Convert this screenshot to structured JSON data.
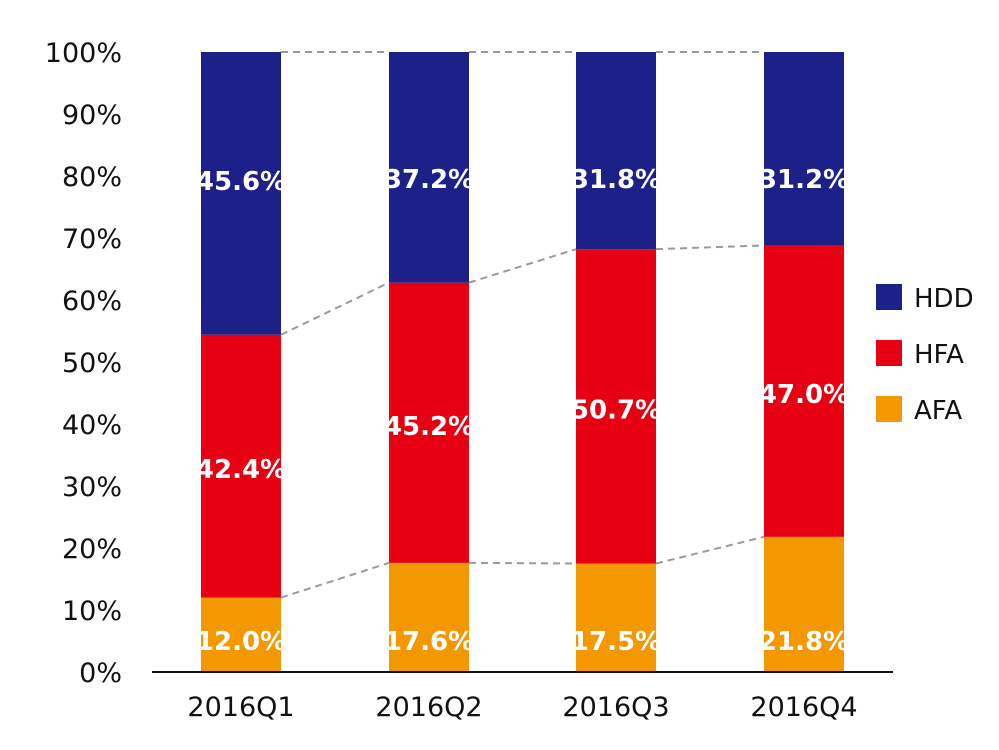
{
  "chart_data": {
    "type": "bar",
    "stacked": true,
    "categories": [
      "2016Q1",
      "2016Q2",
      "2016Q3",
      "2016Q4"
    ],
    "series": [
      {
        "name": "AFA",
        "color": "#f39800",
        "values": [
          12.0,
          17.6,
          17.5,
          21.8
        ],
        "labels": [
          "12.0%",
          "17.6%",
          "17.5%",
          "21.8%"
        ]
      },
      {
        "name": "HFA",
        "color": "#e60012",
        "values": [
          42.4,
          45.2,
          50.7,
          47.0
        ],
        "labels": [
          "42.4%",
          "45.2%",
          "50.7%",
          "47.0%"
        ]
      },
      {
        "name": "HDD",
        "color": "#1d2088",
        "values": [
          45.6,
          37.2,
          31.8,
          31.2
        ],
        "labels": [
          "45.6%",
          "37.2%",
          "31.8%",
          "31.2%"
        ]
      }
    ],
    "ylim": [
      0,
      100
    ],
    "yticks": [
      "0%",
      "10%",
      "20%",
      "30%",
      "40%",
      "50%",
      "60%",
      "70%",
      "80%",
      "90%",
      "100%"
    ],
    "legend": {
      "position": "right",
      "order": [
        "HDD",
        "HFA",
        "AFA"
      ]
    },
    "connector_lines": "dashed gray between stack boundaries",
    "grid": false
  }
}
